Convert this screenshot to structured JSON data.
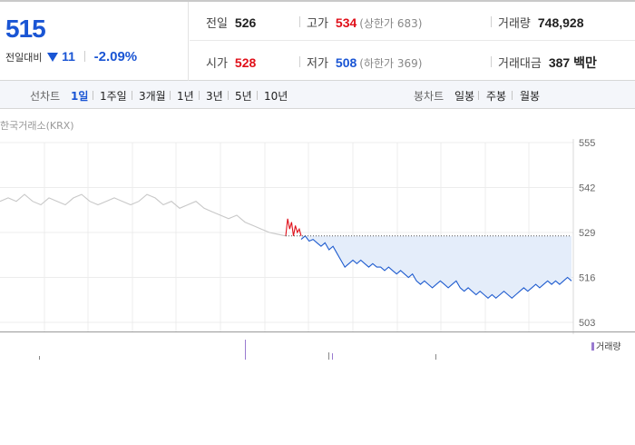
{
  "quote": {
    "price": "515",
    "change_label": "전일대비",
    "change_amount": "11",
    "change_percent": "-2.09%",
    "colors": {
      "down": "#1a55d4",
      "up": "#e0101a"
    }
  },
  "stats": {
    "prev_close": {
      "label": "전일",
      "value": "526"
    },
    "high": {
      "label": "고가",
      "value": "534",
      "note": "(상한가 683)"
    },
    "volume": {
      "label": "거래량",
      "value": "748,928"
    },
    "open": {
      "label": "시가",
      "value": "528"
    },
    "low": {
      "label": "저가",
      "value": "508",
      "note": "(하한가 369)"
    },
    "amount": {
      "label": "거래대금",
      "value": "387 백만"
    }
  },
  "toolbar": {
    "line_label": "선차트",
    "periods": [
      "1일",
      "1주일",
      "3개월",
      "1년",
      "3년",
      "5년",
      "10년"
    ],
    "active_period": "1일",
    "candle_label": "봉차트",
    "candles": [
      "일봉",
      "주봉",
      "월봉"
    ]
  },
  "chart": {
    "source": "한국거래소(KRX)",
    "y_ticks": [
      "555",
      "542",
      "529",
      "516",
      "503"
    ],
    "volume_legend": "거래량",
    "icons": [
      "down-triangle-icon"
    ]
  },
  "chart_data": {
    "type": "line",
    "ylim": [
      503,
      555
    ],
    "y_ticks": [
      555,
      542,
      529,
      516,
      503
    ],
    "reference_line": 528,
    "series": [
      {
        "segment": "pre-open",
        "values": [
          538,
          539,
          538,
          540,
          538,
          537,
          539,
          538,
          537,
          539,
          540,
          538,
          537,
          538,
          539,
          538,
          537,
          538,
          540,
          539,
          537,
          538,
          536,
          537,
          538,
          536,
          535,
          534,
          533,
          534,
          532,
          531,
          530,
          529,
          528.5,
          528
        ]
      },
      {
        "segment": "above-open",
        "values": [
          528,
          533,
          530,
          532,
          528,
          531,
          529,
          530,
          528
        ]
      },
      {
        "segment": "below-open",
        "values": [
          527,
          528,
          526.5,
          527,
          526,
          525,
          526,
          524,
          525,
          523,
          521,
          519,
          520,
          521,
          520,
          521,
          520,
          519,
          520,
          519,
          519,
          518,
          519,
          518,
          517,
          518,
          517,
          516,
          517,
          515,
          514,
          515,
          514,
          513,
          514,
          515,
          514,
          513,
          514,
          515,
          513,
          512,
          513,
          512,
          511,
          512,
          511,
          510,
          511,
          510,
          511,
          512,
          511,
          510,
          511,
          512,
          513,
          512,
          513,
          514,
          513,
          514,
          515,
          514,
          515,
          514,
          515,
          516,
          515
        ]
      }
    ],
    "colors": {
      "pre": "#c8c8c8",
      "up": "#e0101a",
      "down": "#1f5ccf",
      "fill": "#e4edfa",
      "ref": "#555555"
    }
  }
}
